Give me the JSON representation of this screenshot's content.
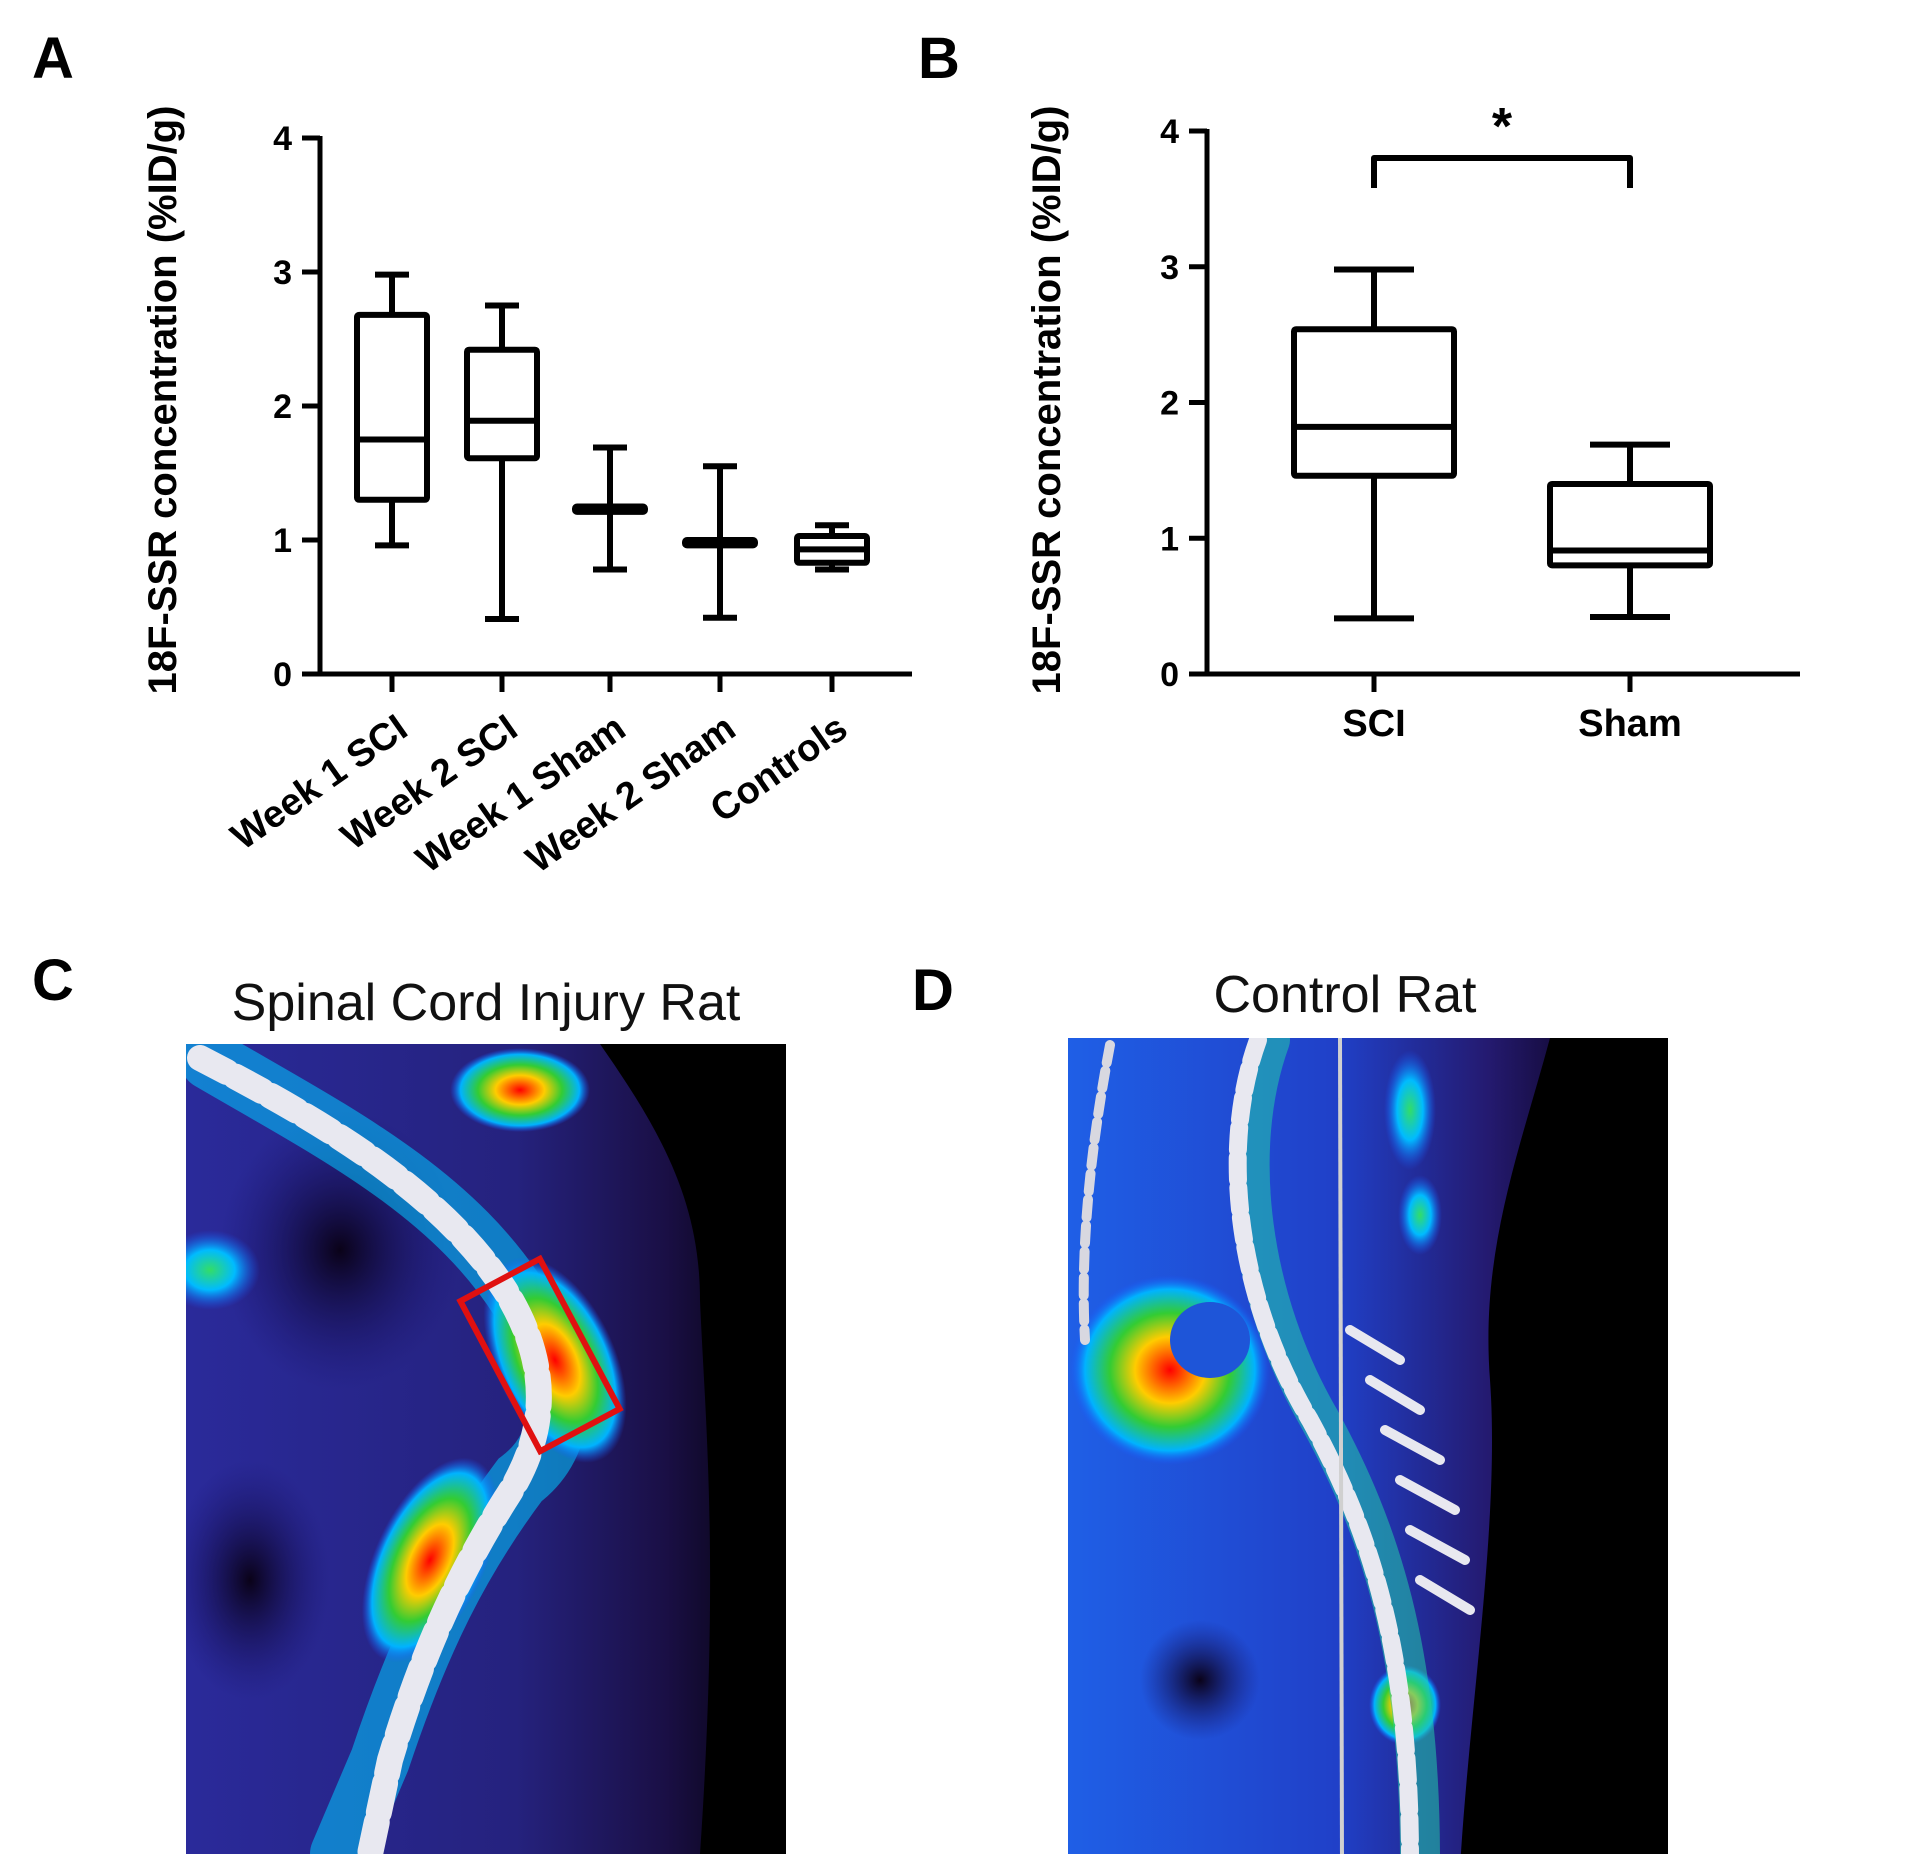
{
  "panels": {
    "a": "A",
    "b": "B",
    "c": "C",
    "d": "D"
  },
  "chart_data": [
    {
      "type": "box",
      "panel": "A",
      "ylabel": "18F-SSR concentration (%ID/g)",
      "ylim": [
        0,
        4
      ],
      "yticks": [
        "0",
        "1",
        "2",
        "3",
        "4"
      ],
      "categories": [
        "Week 1 SCI",
        "Week 2 SCI",
        "Week 1 Sham",
        "Week 2 Sham",
        "Controls"
      ],
      "boxes": [
        {
          "min": 0.96,
          "q1": 1.3,
          "median": 1.75,
          "q3": 2.68,
          "max": 2.98
        },
        {
          "min": 0.41,
          "q1": 1.61,
          "median": 1.89,
          "q3": 2.42,
          "max": 2.75
        },
        {
          "min": 0.78,
          "q1": 1.21,
          "median": 1.23,
          "q3": 1.25,
          "max": 1.69
        },
        {
          "min": 0.42,
          "q1": 0.96,
          "median": 0.98,
          "q3": 1.0,
          "max": 1.55
        },
        {
          "min": 0.78,
          "q1": 0.83,
          "median": 0.93,
          "q3": 1.03,
          "max": 1.11
        }
      ]
    },
    {
      "type": "box",
      "panel": "B",
      "ylabel": "18F-SSR concentration (%ID/g)",
      "ylim": [
        0,
        4
      ],
      "yticks": [
        "0",
        "1",
        "2",
        "3",
        "4"
      ],
      "categories": [
        "SCI",
        "Sham"
      ],
      "boxes": [
        {
          "min": 0.41,
          "q1": 1.46,
          "median": 1.82,
          "q3": 2.54,
          "max": 2.98
        },
        {
          "min": 0.42,
          "q1": 0.8,
          "median": 0.91,
          "q3": 1.4,
          "max": 1.69
        }
      ],
      "significance": {
        "between": [
          "SCI",
          "Sham"
        ],
        "label": "*"
      }
    }
  ],
  "images": {
    "c": {
      "title": "Spinal Cord Injury Rat"
    },
    "d": {
      "title": "Control Rat"
    }
  }
}
